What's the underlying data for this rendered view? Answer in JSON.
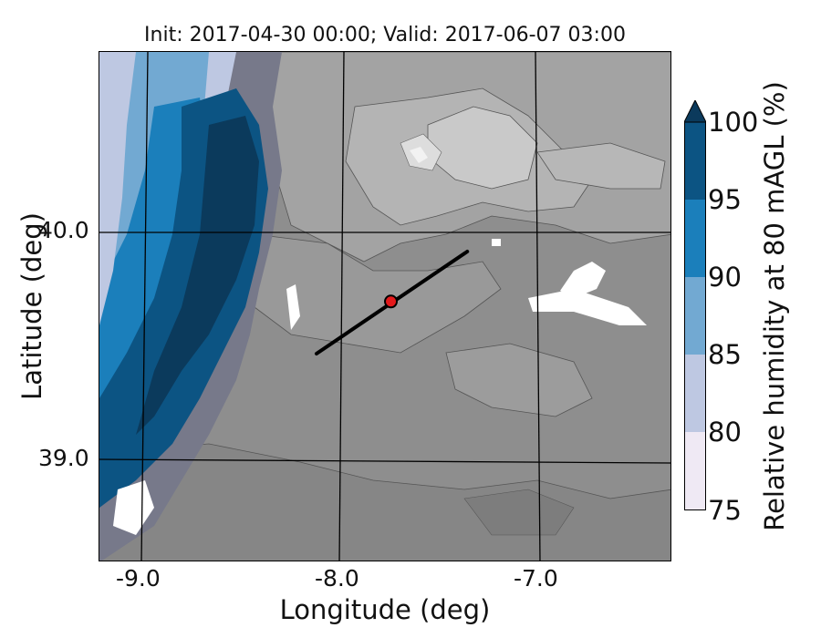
{
  "title": "Init: 2017-04-30 00:00; Valid: 2017-06-07 03:00",
  "xlabel": "Longitude (deg)",
  "ylabel": "Latitude (deg)",
  "x_ticks": [
    "-9.0",
    "-8.0",
    "-7.0"
  ],
  "y_ticks": [
    "40.0",
    "39.0"
  ],
  "colorbar": {
    "label": "Relative humidity at 80 mAGL (%)",
    "ticks": [
      "75",
      "80",
      "85",
      "90",
      "95",
      "100"
    ],
    "colors": [
      "#efe9f4",
      "#bec8e2",
      "#72a9d2",
      "#1b7fbb",
      "#0c5483",
      "#0b3a5c"
    ],
    "extend": "max"
  },
  "chart_data": {
    "type": "heatmap",
    "title": "Init: 2017-04-30 00:00; Valid: 2017-06-07 03:00",
    "xlabel": "Longitude (deg)",
    "ylabel": "Latitude (deg)",
    "xlim": [
      -9.2,
      -6.35
    ],
    "ylim": [
      38.55,
      40.8
    ],
    "variable": "Relative humidity at 80 mAGL (%)",
    "levels": [
      75,
      80,
      85,
      90,
      95,
      100
    ],
    "cross_section_line": {
      "start": [
        -8.12,
        39.47
      ],
      "end": [
        -7.37,
        39.92
      ]
    },
    "marker": {
      "lon": -7.75,
      "lat": 39.7,
      "color": "#e31a1c"
    }
  }
}
